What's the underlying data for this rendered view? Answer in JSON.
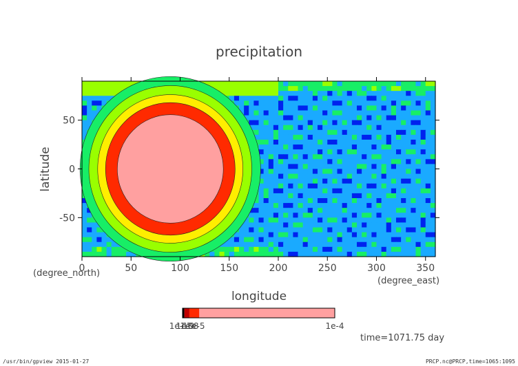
{
  "chart_data": {
    "type": "heatmap",
    "title": "precipitation",
    "xlabel": "longitude",
    "ylabel": "latitude",
    "xunit": "(degree_east)",
    "yunit": "(degree_north)",
    "xlim": [
      0,
      360
    ],
    "ylim": [
      -90,
      90
    ],
    "xticks": [
      0,
      50,
      100,
      150,
      200,
      250,
      300,
      350
    ],
    "yticks": [
      50,
      0,
      -50
    ],
    "colorbar": {
      "colors": [
        "#000000",
        "#c00000",
        "#ff2a00",
        "#ffa0a0"
      ],
      "labels": [
        "1e-10",
        "1e-9",
        "1e-8",
        "1e-5",
        "1e-4"
      ],
      "max_label": "1e-4"
    },
    "field_colors": [
      "#7a1e9c",
      "#0022ee",
      "#1aaaff",
      "#18ee66",
      "#99ff00",
      "#ffee00",
      "#ff2a00",
      "#ffa0a0"
    ],
    "storm_center_lon": 90,
    "storm_center_lat": 0,
    "time_label": "time=1071.75 day"
  },
  "footer": {
    "left": "/usr/bin/gpview  2015-01-27",
    "right": "PRCP.nc@PRCP,time=1065:1095"
  }
}
